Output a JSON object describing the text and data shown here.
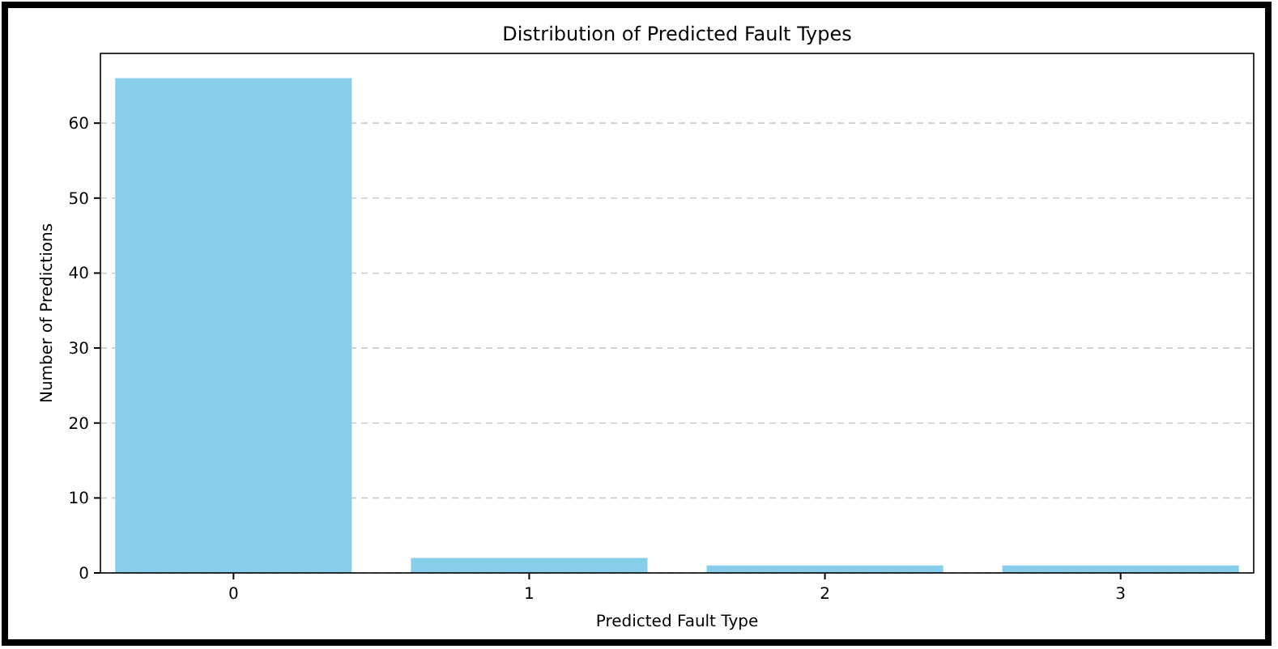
{
  "chart_data": {
    "type": "bar",
    "title": "Distribution of Predicted Fault Types",
    "xlabel": "Predicted Fault Type",
    "ylabel": "Number of Predictions",
    "categories": [
      "0",
      "1",
      "2",
      "3"
    ],
    "values": [
      66,
      2,
      1,
      1
    ],
    "color": "#87ceeb",
    "ylim": [
      0,
      69.3
    ],
    "yticks": [
      0,
      10,
      20,
      30,
      40,
      50,
      60
    ],
    "grid": "y"
  }
}
